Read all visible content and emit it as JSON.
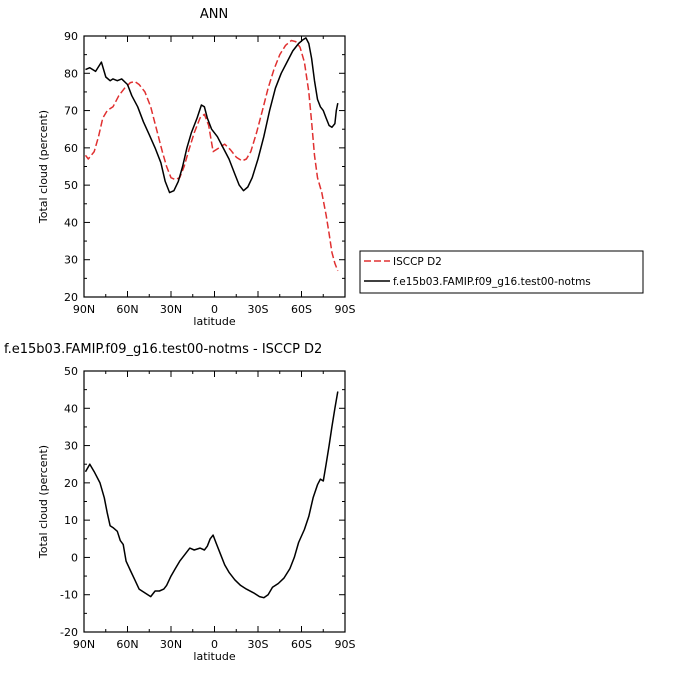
{
  "chart_data": [
    {
      "type": "line",
      "title": "ANN",
      "xlabel": "latitude",
      "ylabel": "Total cloud (percent)",
      "xlim": [
        90,
        -90
      ],
      "ylim": [
        20,
        90
      ],
      "x_ticks": [
        {
          "value": 90,
          "label": "90N"
        },
        {
          "value": 60,
          "label": "60N"
        },
        {
          "value": 30,
          "label": "30N"
        },
        {
          "value": 0,
          "label": "0"
        },
        {
          "value": -30,
          "label": "30S"
        },
        {
          "value": -60,
          "label": "60S"
        },
        {
          "value": -90,
          "label": "90S"
        }
      ],
      "y_ticks": [
        20,
        30,
        40,
        50,
        60,
        70,
        80,
        90
      ],
      "legend_position": "right",
      "series": [
        {
          "name": "ISCCP D2",
          "color": "#e03030",
          "dash": "dashed",
          "points": [
            [
              89,
              58
            ],
            [
              87,
              57
            ],
            [
              83,
              59
            ],
            [
              80,
              63
            ],
            [
              77,
              68
            ],
            [
              74,
              70
            ],
            [
              70,
              71
            ],
            [
              66,
              74
            ],
            [
              62,
              76
            ],
            [
              58,
              77.5
            ],
            [
              55,
              77.8
            ],
            [
              52,
              77
            ],
            [
              48,
              75
            ],
            [
              44,
              71
            ],
            [
              40,
              65
            ],
            [
              36,
              59
            ],
            [
              33,
              55
            ],
            [
              30,
              52
            ],
            [
              27,
              51.5
            ],
            [
              24,
              52
            ],
            [
              21,
              55
            ],
            [
              18,
              59
            ],
            [
              14,
              64
            ],
            [
              10,
              68
            ],
            [
              7,
              69
            ],
            [
              4,
              66
            ],
            [
              1,
              59
            ],
            [
              -3,
              60
            ],
            [
              -7,
              61
            ],
            [
              -11,
              59.5
            ],
            [
              -15,
              57.5
            ],
            [
              -19,
              56.5
            ],
            [
              -22,
              57
            ],
            [
              -25,
              59
            ],
            [
              -29,
              64
            ],
            [
              -33,
              70
            ],
            [
              -37,
              76
            ],
            [
              -41,
              81
            ],
            [
              -45,
              85
            ],
            [
              -49,
              87.5
            ],
            [
              -53,
              88.8
            ],
            [
              -56,
              88.5
            ],
            [
              -59,
              87
            ],
            [
              -62,
              83
            ],
            [
              -65,
              75
            ],
            [
              -67,
              67
            ],
            [
              -69,
              58
            ],
            [
              -71,
              52
            ],
            [
              -74,
              48
            ],
            [
              -77,
              42
            ],
            [
              -79,
              37
            ],
            [
              -81,
              32
            ],
            [
              -83,
              29
            ],
            [
              -85,
              27
            ]
          ]
        },
        {
          "name": "f.e15b03.FAMIP.f09_g16.test00-notms",
          "color": "#000000",
          "dash": "solid",
          "points": [
            [
              89,
              81
            ],
            [
              86,
              81.5
            ],
            [
              82,
              80.5
            ],
            [
              78,
              83
            ],
            [
              75,
              79
            ],
            [
              72,
              78
            ],
            [
              70,
              78.5
            ],
            [
              67,
              78
            ],
            [
              64,
              78.5
            ],
            [
              60,
              77
            ],
            [
              57,
              74
            ],
            [
              53,
              71
            ],
            [
              49,
              67
            ],
            [
              45,
              63.5
            ],
            [
              41,
              60
            ],
            [
              37,
              56
            ],
            [
              34,
              51
            ],
            [
              31,
              48
            ],
            [
              28,
              48.5
            ],
            [
              25,
              51
            ],
            [
              22,
              55
            ],
            [
              19,
              60
            ],
            [
              16,
              64
            ],
            [
              12,
              68
            ],
            [
              9,
              71.5
            ],
            [
              7,
              71
            ],
            [
              5,
              68
            ],
            [
              2,
              65
            ],
            [
              -2,
              63
            ],
            [
              -6,
              60
            ],
            [
              -10,
              57
            ],
            [
              -14,
              53
            ],
            [
              -17,
              50
            ],
            [
              -20,
              48.5
            ],
            [
              -23,
              49.5
            ],
            [
              -26,
              52
            ],
            [
              -30,
              57
            ],
            [
              -34,
              63
            ],
            [
              -38,
              70
            ],
            [
              -42,
              76
            ],
            [
              -46,
              80
            ],
            [
              -50,
              83
            ],
            [
              -54,
              86
            ],
            [
              -58,
              88
            ],
            [
              -61,
              89
            ],
            [
              -63,
              89.5
            ],
            [
              -65,
              88
            ],
            [
              -67,
              84
            ],
            [
              -69,
              78
            ],
            [
              -71,
              73
            ],
            [
              -73,
              71
            ],
            [
              -75,
              70
            ],
            [
              -77,
              68
            ],
            [
              -79,
              66
            ],
            [
              -81,
              65.5
            ],
            [
              -83,
              66.5
            ],
            [
              -84,
              70
            ],
            [
              -85,
              72
            ]
          ]
        }
      ]
    },
    {
      "type": "line",
      "title": "f.e15b03.FAMIP.f09_g16.test00-notms - ISCCP D2",
      "xlabel": "latitude",
      "ylabel": "Total cloud (percent)",
      "xlim": [
        90,
        -90
      ],
      "ylim": [
        -20,
        50
      ],
      "x_ticks": [
        {
          "value": 90,
          "label": "90N"
        },
        {
          "value": 60,
          "label": "60N"
        },
        {
          "value": 30,
          "label": "30N"
        },
        {
          "value": 0,
          "label": "0"
        },
        {
          "value": -30,
          "label": "30S"
        },
        {
          "value": -60,
          "label": "60S"
        },
        {
          "value": -90,
          "label": "90S"
        }
      ],
      "y_ticks": [
        -20,
        -10,
        0,
        10,
        20,
        30,
        40,
        50
      ],
      "series": [
        {
          "name": "",
          "color": "#000000",
          "dash": "solid",
          "points": [
            [
              89,
              23
            ],
            [
              86,
              25
            ],
            [
              83,
              23
            ],
            [
              79,
              20
            ],
            [
              76,
              16
            ],
            [
              74,
              12
            ],
            [
              72,
              8.5
            ],
            [
              70,
              8
            ],
            [
              67,
              7
            ],
            [
              65,
              4.5
            ],
            [
              63,
              3.5
            ],
            [
              61,
              -1
            ],
            [
              58,
              -3.5
            ],
            [
              55,
              -6
            ],
            [
              52,
              -8.5
            ],
            [
              48,
              -9.5
            ],
            [
              44,
              -10.5
            ],
            [
              41,
              -9
            ],
            [
              38,
              -9
            ],
            [
              35,
              -8.5
            ],
            [
              33,
              -7.5
            ],
            [
              30,
              -5
            ],
            [
              27,
              -3
            ],
            [
              24,
              -1
            ],
            [
              20,
              1
            ],
            [
              17,
              2.5
            ],
            [
              14,
              2
            ],
            [
              10,
              2.5
            ],
            [
              7,
              2
            ],
            [
              5,
              3
            ],
            [
              3,
              5
            ],
            [
              1,
              6
            ],
            [
              -1,
              4
            ],
            [
              -4,
              1
            ],
            [
              -7,
              -2
            ],
            [
              -10,
              -4
            ],
            [
              -14,
              -6
            ],
            [
              -18,
              -7.5
            ],
            [
              -22,
              -8.5
            ],
            [
              -27,
              -9.5
            ],
            [
              -31,
              -10.5
            ],
            [
              -34,
              -10.8
            ],
            [
              -37,
              -10
            ],
            [
              -40,
              -8
            ],
            [
              -44,
              -7
            ],
            [
              -48,
              -5.5
            ],
            [
              -52,
              -3
            ],
            [
              -55,
              0
            ],
            [
              -58,
              4
            ],
            [
              -62,
              7.5
            ],
            [
              -65,
              11
            ],
            [
              -68,
              16
            ],
            [
              -71,
              19.5
            ],
            [
              -73,
              21
            ],
            [
              -75,
              20.5
            ],
            [
              -77,
              25
            ],
            [
              -79,
              30
            ],
            [
              -81,
              35
            ],
            [
              -83,
              40
            ],
            [
              -85,
              44.5
            ]
          ]
        }
      ]
    }
  ]
}
